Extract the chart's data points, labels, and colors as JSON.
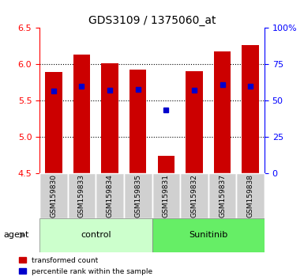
{
  "title": "GDS3109 / 1375060_at",
  "samples": [
    "GSM159830",
    "GSM159833",
    "GSM159834",
    "GSM159835",
    "GSM159831",
    "GSM159832",
    "GSM159837",
    "GSM159838"
  ],
  "groups": [
    "control",
    "control",
    "control",
    "control",
    "Sunitinib",
    "Sunitinib",
    "Sunitinib",
    "Sunitinib"
  ],
  "bar_values": [
    5.9,
    6.13,
    6.01,
    5.93,
    4.74,
    5.91,
    6.18,
    6.27
  ],
  "blue_values": [
    5.63,
    5.7,
    5.65,
    5.66,
    5.37,
    5.65,
    5.72,
    5.7
  ],
  "bar_bottom": 4.5,
  "ylim_left": [
    4.5,
    6.5
  ],
  "ylim_right": [
    0,
    100
  ],
  "yticks_left": [
    4.5,
    5.0,
    5.5,
    6.0,
    6.5
  ],
  "yticks_right": [
    0,
    25,
    50,
    75,
    100
  ],
  "ytick_labels_right": [
    "0",
    "25",
    "50",
    "75",
    "100%"
  ],
  "bar_color": "#cc0000",
  "blue_color": "#0000cc",
  "grid_color": "#000000",
  "bg_color": "#ffffff",
  "plot_bg_color": "#ffffff",
  "control_bg": "#ccffcc",
  "sunitinib_bg": "#66ee66",
  "label_area_bg": "#d0d0d0",
  "agent_label": "agent",
  "group_labels": [
    "control",
    "Sunitinib"
  ],
  "legend_red": "transformed count",
  "legend_blue": "percentile rank within the sample",
  "bar_width": 0.6
}
